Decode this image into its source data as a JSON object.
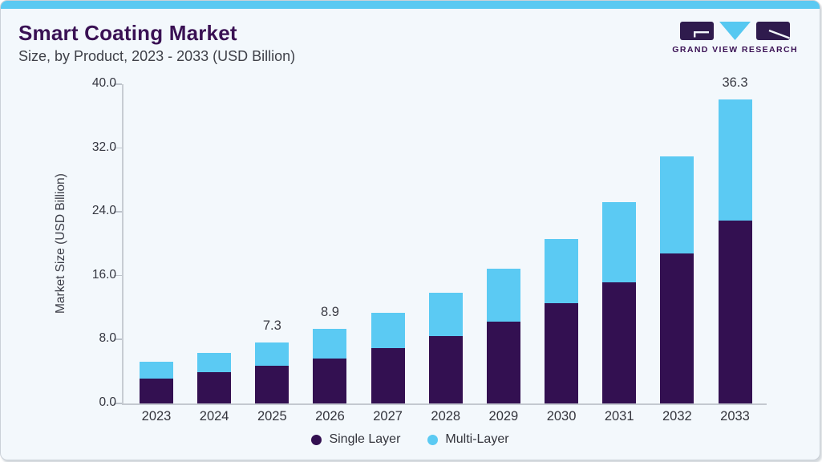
{
  "header": {
    "title": "Smart Coating Market",
    "subtitle": "Size, by Product, 2023 - 2033 (USD Billion)"
  },
  "logo": {
    "text": "GRAND VIEW RESEARCH"
  },
  "chart_data": {
    "type": "bar",
    "stacked": true,
    "title": "Smart Coating Market",
    "subtitle": "Size, by Product, 2023 - 2033 (USD Billion)",
    "xlabel": "",
    "ylabel": "Market Size (USD Billion)",
    "ylim": [
      0,
      40
    ],
    "ytick_step": 8,
    "ytick_labels": [
      "0.0",
      "8.0",
      "16.0",
      "24.0",
      "32.0",
      "40.0"
    ],
    "grid": false,
    "legend_position": "bottom",
    "categories": [
      "2023",
      "2024",
      "2025",
      "2026",
      "2027",
      "2028",
      "2029",
      "2030",
      "2031",
      "2032",
      "2033"
    ],
    "series": [
      {
        "name": "Single Layer",
        "color": "#331051",
        "values": [
          3.0,
          3.7,
          4.5,
          5.4,
          6.6,
          8.1,
          9.8,
          12.0,
          14.5,
          17.9,
          21.9
        ]
      },
      {
        "name": "Multi-Layer",
        "color": "#5BCAF3",
        "values": [
          2.0,
          2.3,
          2.8,
          3.5,
          4.2,
          5.1,
          6.3,
          7.7,
          9.6,
          11.6,
          14.4
        ]
      }
    ],
    "totals": [
      5.0,
      6.0,
      7.3,
      8.9,
      10.8,
      13.2,
      16.1,
      19.7,
      24.1,
      29.5,
      36.3
    ],
    "total_labels": {
      "2025": "7.3",
      "2026": "8.9",
      "2033": "36.3"
    }
  },
  "colors": {
    "accent_blue": "#5BC9F2",
    "bar_single": "#331051",
    "bar_multi": "#5BCAF3",
    "title_purple": "#3A1154",
    "background": "#F3F8FC"
  }
}
